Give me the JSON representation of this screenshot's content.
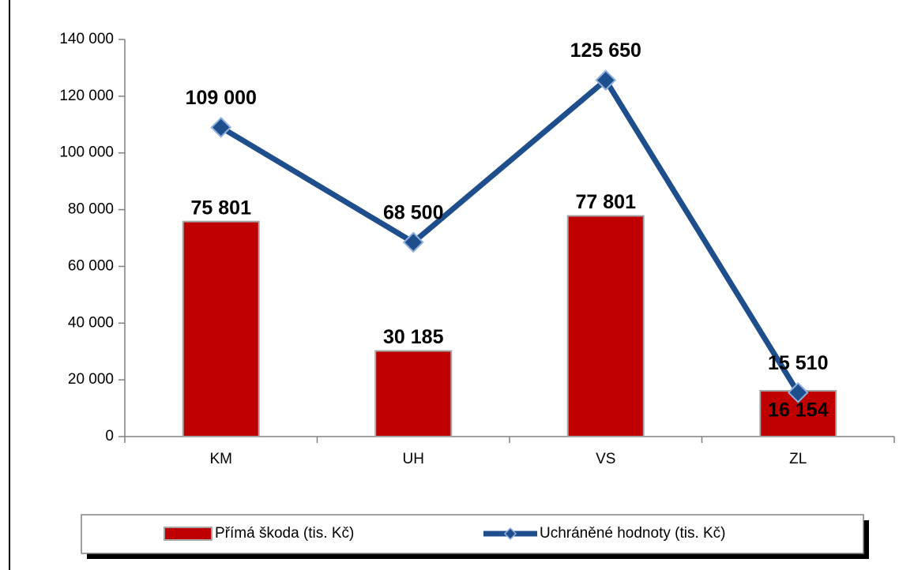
{
  "chart_data": {
    "type": "bar",
    "categories": [
      "KM",
      "UH",
      "VS",
      "ZL"
    ],
    "series": [
      {
        "name": "Přímá škoda (tis. Kč)",
        "type": "bar",
        "color": "#c00000",
        "values": [
          75801,
          30185,
          77801,
          16154
        ],
        "value_labels": [
          "75 801",
          "30 185",
          "77 801",
          "16 154"
        ]
      },
      {
        "name": "Uchráněné hodnoty (tis. Kč)",
        "type": "line",
        "color": "#1f4e8c",
        "values": [
          109000,
          68500,
          125650,
          15510
        ],
        "value_labels": [
          "109 000",
          "68 500",
          "125 650",
          "15 510"
        ]
      }
    ],
    "ylim": [
      0,
      140000
    ],
    "yticks": [
      0,
      {
        "value": 20000,
        "label": "20 000"
      },
      {
        "value": 40000,
        "label": "40 000"
      },
      {
        "value": 60000,
        "label": "60 000"
      },
      {
        "value": 80000,
        "label": "80 000"
      },
      {
        "value": 100000,
        "label": "100 000"
      },
      {
        "value": 120000,
        "label": "120 000"
      },
      {
        "value": 140000,
        "label": "140 000"
      }
    ],
    "grid": false,
    "legend": "bottom"
  }
}
